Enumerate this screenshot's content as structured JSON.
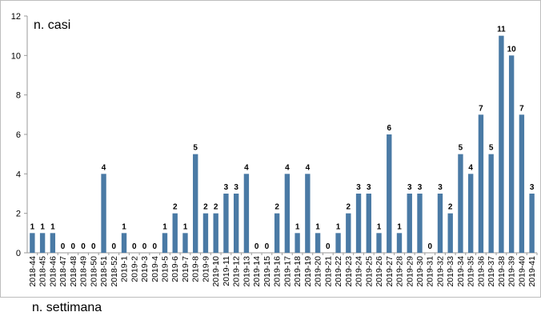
{
  "chart_data": {
    "type": "bar",
    "ylabel": "n. casi",
    "xlabel": "n. settimana",
    "ylim": [
      0,
      12
    ],
    "yticks": [
      0,
      2,
      4,
      6,
      8,
      10,
      12
    ],
    "bar_color": "#4a7aa5",
    "grid": false,
    "legend": "none",
    "categories": [
      "2018-44",
      "2018-45",
      "2018-46",
      "2018-47",
      "2018-48",
      "2018-49",
      "2018-50",
      "2018-51",
      "2018-52",
      "2019-1",
      "2019-2",
      "2019-3",
      "2019-4",
      "2019-5",
      "2019-6",
      "2019-7",
      "2019-8",
      "2019-9",
      "2019-10",
      "2019-11",
      "2019-12",
      "2019-13",
      "2019-14",
      "2019-15",
      "2019-16",
      "2019-17",
      "2019-18",
      "2019-19",
      "2019-20",
      "2019-21",
      "2019-22",
      "2019-23",
      "2019-24",
      "2019-25",
      "2019-26",
      "2019-27",
      "2019-28",
      "2019-29",
      "2019-30",
      "2019-31",
      "2019-32",
      "2019-33",
      "2019-34",
      "2019-35",
      "2019-36",
      "2019-37",
      "2019-38",
      "2019-39",
      "2019-40",
      "2019-41"
    ],
    "values": [
      1,
      1,
      1,
      0,
      0,
      0,
      0,
      4,
      0,
      1,
      0,
      0,
      0,
      1,
      2,
      1,
      5,
      2,
      2,
      3,
      3,
      4,
      0,
      0,
      2,
      4,
      1,
      4,
      1,
      0,
      1,
      2,
      3,
      3,
      1,
      6,
      1,
      3,
      3,
      0,
      3,
      2,
      5,
      4,
      7,
      5,
      11,
      10,
      7,
      3
    ]
  }
}
